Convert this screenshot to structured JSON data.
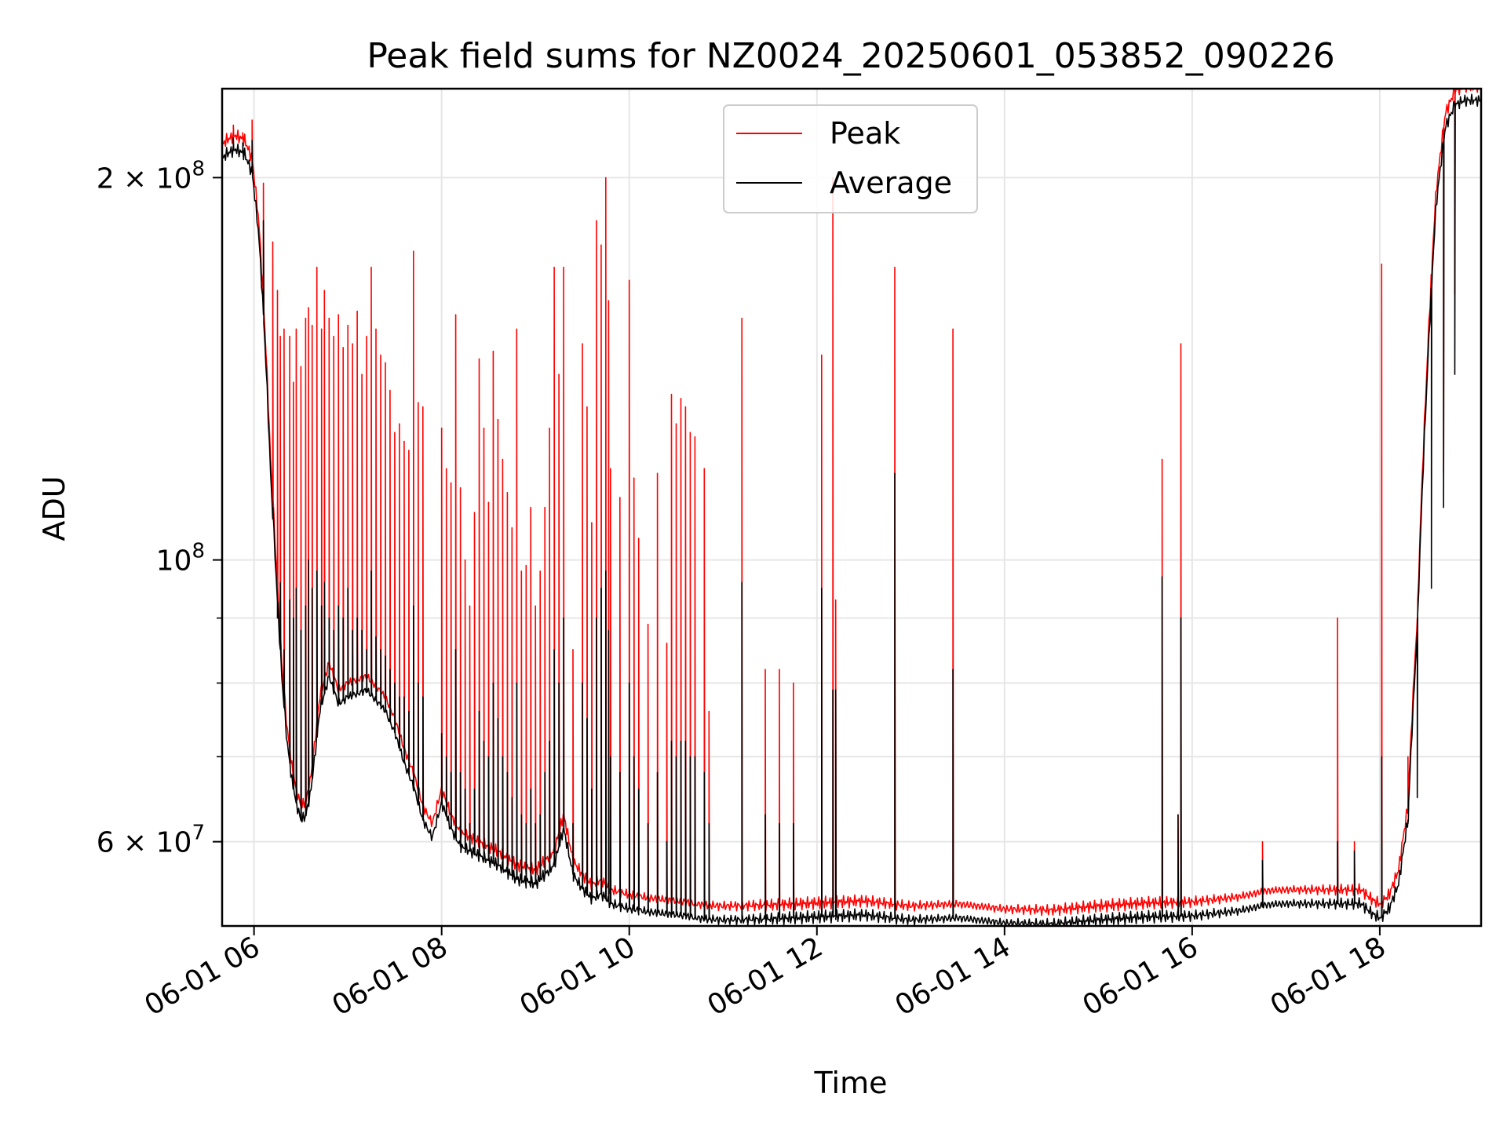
{
  "chart_data": {
    "type": "line",
    "title": "Peak field sums for NZ0024_20250601_053852_090226",
    "xlabel": "Time",
    "ylabel": "ADU",
    "x_unit": "hours (local clock time on 2025-06-01)",
    "xlim": [
      5.66,
      19.08
    ],
    "ylim": [
      51500000,
      235000000
    ],
    "y_scale": "log",
    "grid": true,
    "legend_position": "upper center",
    "x_ticks": [
      {
        "value": 6,
        "label": "06-01 06"
      },
      {
        "value": 8,
        "label": "06-01 08"
      },
      {
        "value": 10,
        "label": "06-01 10"
      },
      {
        "value": 12,
        "label": "06-01 12"
      },
      {
        "value": 14,
        "label": "06-01 14"
      },
      {
        "value": 16,
        "label": "06-01 16"
      },
      {
        "value": 18,
        "label": "06-01 18"
      }
    ],
    "y_major_ticks": [
      {
        "value": 60000000,
        "base": "6",
        "exp": "7"
      },
      {
        "value": 100000000,
        "base": "",
        "exp": "8"
      },
      {
        "value": 200000000,
        "base": "2",
        "exp": "8"
      }
    ],
    "y_minor_ticks": [
      70000000,
      80000000,
      90000000
    ],
    "series": [
      {
        "name": "Peak",
        "color": "#ff0000"
      },
      {
        "name": "Average",
        "color": "#000000"
      }
    ],
    "baseline": [
      [
        5.66,
        212000000
      ],
      [
        5.7,
        214000000
      ],
      [
        5.8,
        216000000
      ],
      [
        5.9,
        214000000
      ],
      [
        5.98,
        207000000
      ],
      [
        6.05,
        185000000
      ],
      [
        6.12,
        150000000
      ],
      [
        6.18,
        118000000
      ],
      [
        6.25,
        95000000
      ],
      [
        6.3,
        82000000
      ],
      [
        6.35,
        74000000
      ],
      [
        6.4,
        69000000
      ],
      [
        6.45,
        66000000
      ],
      [
        6.5,
        64000000
      ],
      [
        6.55,
        64500000
      ],
      [
        6.6,
        67000000
      ],
      [
        6.65,
        72000000
      ],
      [
        6.7,
        78000000
      ],
      [
        6.8,
        83000000
      ],
      [
        6.9,
        79000000
      ],
      [
        7.0,
        80000000
      ],
      [
        7.2,
        81000000
      ],
      [
        7.4,
        78000000
      ],
      [
        7.5,
        75000000
      ],
      [
        7.6,
        71000000
      ],
      [
        7.7,
        68000000
      ],
      [
        7.8,
        64000000
      ],
      [
        7.9,
        62000000
      ],
      [
        8.0,
        66000000
      ],
      [
        8.1,
        63000000
      ],
      [
        8.2,
        61000000
      ],
      [
        8.4,
        60000000
      ],
      [
        8.6,
        59000000
      ],
      [
        8.8,
        57500000
      ],
      [
        9.0,
        57000000
      ],
      [
        9.2,
        59000000
      ],
      [
        9.3,
        63000000
      ],
      [
        9.4,
        58000000
      ],
      [
        9.5,
        56500000
      ],
      [
        9.6,
        55500000
      ],
      [
        9.7,
        56000000
      ],
      [
        9.8,
        55000000
      ],
      [
        10.0,
        54500000
      ],
      [
        10.2,
        54200000
      ],
      [
        10.4,
        54000000
      ],
      [
        10.6,
        53800000
      ],
      [
        10.8,
        53500000
      ],
      [
        11.0,
        53400000
      ],
      [
        11.5,
        53500000
      ],
      [
        12.0,
        53700000
      ],
      [
        12.5,
        53900000
      ],
      [
        13.0,
        53400000
      ],
      [
        13.5,
        53600000
      ],
      [
        14.0,
        53100000
      ],
      [
        14.5,
        53000000
      ],
      [
        15.0,
        53400000
      ],
      [
        15.5,
        53700000
      ],
      [
        16.0,
        53800000
      ],
      [
        16.5,
        54300000
      ],
      [
        16.8,
        54900000
      ],
      [
        17.0,
        55000000
      ],
      [
        17.5,
        55000000
      ],
      [
        17.8,
        55000000
      ],
      [
        17.92,
        54000000
      ],
      [
        18.0,
        53600000
      ],
      [
        18.1,
        54500000
      ],
      [
        18.2,
        57000000
      ],
      [
        18.3,
        64000000
      ],
      [
        18.4,
        90000000
      ],
      [
        18.5,
        140000000
      ],
      [
        18.6,
        195000000
      ],
      [
        18.7,
        225000000
      ],
      [
        18.8,
        234000000
      ],
      [
        18.9,
        236000000
      ],
      [
        19.08,
        236000000
      ]
    ],
    "avg_ratio": 0.975,
    "spikes": [
      [
        5.78,
        220000000,
        215000000
      ],
      [
        5.88,
        217000000,
        213000000
      ],
      [
        5.98,
        222000000,
        214000000
      ],
      [
        6.1,
        198000000,
        185000000
      ],
      [
        6.2,
        178000000,
        110000000
      ],
      [
        6.25,
        163000000,
        90000000
      ],
      [
        6.28,
        150000000,
        96000000
      ],
      [
        6.32,
        152000000,
        85000000
      ],
      [
        6.38,
        150000000,
        93000000
      ],
      [
        6.42,
        138000000,
        90000000
      ],
      [
        6.45,
        152000000,
        95000000
      ],
      [
        6.5,
        142000000,
        88000000
      ],
      [
        6.55,
        155000000,
        92000000
      ],
      [
        6.58,
        158000000,
        100000000
      ],
      [
        6.62,
        153000000,
        95000000
      ],
      [
        6.67,
        170000000,
        98000000
      ],
      [
        6.72,
        152000000,
        92000000
      ],
      [
        6.75,
        163000000,
        96000000
      ],
      [
        6.8,
        155000000,
        90000000
      ],
      [
        6.85,
        150000000,
        88000000
      ],
      [
        6.9,
        156000000,
        92000000
      ],
      [
        6.95,
        147000000,
        90000000
      ],
      [
        7.0,
        153000000,
        95000000
      ],
      [
        7.05,
        148000000,
        88000000
      ],
      [
        7.1,
        157000000,
        90000000
      ],
      [
        7.15,
        140000000,
        88000000
      ],
      [
        7.2,
        150000000,
        85000000
      ],
      [
        7.25,
        170000000,
        98000000
      ],
      [
        7.3,
        152000000,
        87000000
      ],
      [
        7.35,
        145000000,
        85000000
      ],
      [
        7.4,
        143000000,
        84000000
      ],
      [
        7.45,
        136000000,
        82000000
      ],
      [
        7.5,
        126000000,
        80000000
      ],
      [
        7.55,
        128000000,
        78000000
      ],
      [
        7.6,
        124000000,
        78000000
      ],
      [
        7.65,
        122000000,
        76000000
      ],
      [
        7.7,
        175000000,
        92000000
      ],
      [
        7.75,
        133000000,
        80000000
      ],
      [
        7.8,
        132000000,
        78000000
      ],
      [
        8.0,
        127000000,
        73000000
      ],
      [
        8.05,
        118000000,
        70000000
      ],
      [
        8.1,
        115000000,
        68000000
      ],
      [
        8.15,
        156000000,
        85000000
      ],
      [
        8.2,
        114000000,
        68000000
      ],
      [
        8.25,
        100000000,
        66000000
      ],
      [
        8.3,
        92000000,
        62000000
      ],
      [
        8.35,
        109000000,
        66000000
      ],
      [
        8.4,
        144000000,
        76000000
      ],
      [
        8.45,
        127000000,
        72000000
      ],
      [
        8.5,
        111000000,
        70000000
      ],
      [
        8.55,
        146000000,
        80000000
      ],
      [
        8.6,
        129000000,
        75000000
      ],
      [
        8.65,
        120000000,
        70000000
      ],
      [
        8.7,
        113000000,
        68000000
      ],
      [
        8.75,
        106000000,
        65000000
      ],
      [
        8.8,
        152000000,
        80000000
      ],
      [
        8.85,
        98000000,
        63000000
      ],
      [
        8.9,
        99000000,
        62000000
      ],
      [
        8.95,
        110000000,
        66000000
      ],
      [
        9.0,
        92000000,
        62000000
      ],
      [
        9.05,
        98000000,
        63000000
      ],
      [
        9.1,
        110000000,
        68000000
      ],
      [
        9.15,
        127000000,
        72000000
      ],
      [
        9.2,
        170000000,
        85000000
      ],
      [
        9.25,
        140000000,
        80000000
      ],
      [
        9.3,
        170000000,
        90000000
      ],
      [
        9.4,
        85000000,
        62000000
      ],
      [
        9.5,
        148000000,
        80000000
      ],
      [
        9.55,
        132000000,
        75000000
      ],
      [
        9.6,
        107000000,
        66000000
      ],
      [
        9.65,
        185000000,
        90000000
      ],
      [
        9.7,
        177000000,
        95000000
      ],
      [
        9.75,
        200000000,
        98000000
      ],
      [
        9.78,
        160000000,
        88000000
      ],
      [
        9.8,
        118000000,
        70000000
      ],
      [
        9.9,
        112000000,
        68000000
      ],
      [
        10.0,
        166000000,
        80000000
      ],
      [
        10.05,
        116000000,
        70000000
      ],
      [
        10.1,
        104000000,
        66000000
      ],
      [
        10.2,
        89000000,
        62000000
      ],
      [
        10.3,
        117000000,
        68000000
      ],
      [
        10.4,
        86000000,
        60000000
      ],
      [
        10.45,
        135000000,
        72000000
      ],
      [
        10.5,
        128000000,
        70000000
      ],
      [
        10.55,
        134000000,
        72000000
      ],
      [
        10.6,
        132000000,
        72000000
      ],
      [
        10.65,
        126000000,
        70000000
      ],
      [
        10.7,
        125000000,
        70000000
      ],
      [
        10.8,
        118000000,
        68000000
      ],
      [
        10.85,
        76000000,
        62000000
      ],
      [
        11.2,
        155000000,
        96000000
      ],
      [
        11.45,
        82000000,
        63000000
      ],
      [
        11.6,
        82000000,
        62000000
      ],
      [
        11.75,
        80000000,
        62000000
      ],
      [
        12.05,
        145000000,
        95000000
      ],
      [
        12.17,
        200000000,
        79000000
      ],
      [
        12.2,
        93000000,
        79000000
      ],
      [
        12.83,
        170000000,
        117000000
      ],
      [
        13.45,
        152000000,
        82000000
      ],
      [
        15.68,
        120000000,
        97000000
      ],
      [
        15.85,
        63000000,
        63000000
      ],
      [
        15.88,
        148000000,
        90000000
      ],
      [
        16.75,
        60000000,
        58000000
      ],
      [
        17.55,
        90000000,
        60000000
      ],
      [
        17.73,
        60000000,
        59000000
      ],
      [
        18.02,
        171000000,
        70000000
      ],
      [
        18.3,
        70000000,
        62000000
      ],
      [
        18.4,
        90000000,
        65000000
      ],
      [
        18.55,
        162000000,
        95000000
      ],
      [
        18.68,
        117000000,
        110000000
      ],
      [
        18.8,
        162000000,
        140000000
      ]
    ]
  }
}
